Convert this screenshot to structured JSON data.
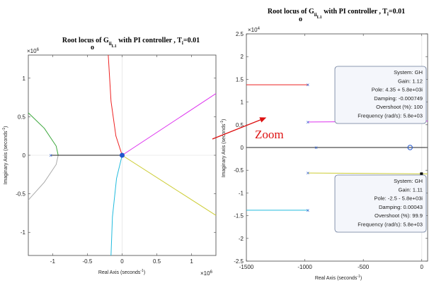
{
  "chart_data": [
    {
      "type": "line",
      "title": "Root locus of G",
      "title_sub": "i",
      "title_sub2": "o",
      "title_sub3": "i",
      "title_sub4": "L1",
      "title_tail": " with PI controller , T",
      "title_ti_sub": "i",
      "title_end": "=0.01",
      "xlabel": "Real Axis (seconds",
      "ylabel": "Imaginary Axis (seconds",
      "unit_exp": "-1",
      "x_multiplier": "×10",
      "y_multiplier": "×10",
      "multiplier_exp": "6",
      "xlim": [
        -1.35,
        1.35
      ],
      "ylim": [
        -1.3,
        1.3
      ],
      "x_ticks": [
        -1,
        -0.5,
        0,
        0.5,
        1
      ],
      "x_tick_labels": [
        "-1",
        "-0.5",
        "0",
        "0.5",
        "1"
      ],
      "y_ticks": [
        -1,
        -0.5,
        0,
        0.5,
        1
      ],
      "y_tick_labels": [
        "-1",
        "-0.5",
        "0",
        "0.5",
        "1"
      ],
      "series": [
        {
          "color": "#3aa63a",
          "points": [
            [
              -1.35,
              0.55
            ],
            [
              -1.12,
              0.35
            ],
            [
              -0.95,
              0.12
            ],
            [
              -0.92,
              0.0
            ]
          ]
        },
        {
          "color": "#aaaaaa",
          "points": [
            [
              -0.92,
              0.0
            ],
            [
              -0.95,
              -0.12
            ],
            [
              -1.12,
              -0.35
            ],
            [
              -1.35,
              -0.58
            ]
          ]
        },
        {
          "color": "#222222",
          "points": [
            [
              -1.02,
              0.0
            ],
            [
              0.0,
              0.0
            ]
          ]
        },
        {
          "color": "#ee2222",
          "points": [
            [
              -0.2,
              1.3
            ],
            [
              -0.16,
              0.7
            ],
            [
              -0.09,
              0.25
            ],
            [
              0.0,
              0.0
            ]
          ]
        },
        {
          "color": "#22bbdd",
          "points": [
            [
              0.0,
              0.0
            ],
            [
              -0.08,
              -0.3
            ],
            [
              -0.14,
              -0.8
            ],
            [
              -0.16,
              -1.3
            ]
          ]
        },
        {
          "color": "#dd33ee",
          "points": [
            [
              0.0,
              0.0
            ],
            [
              1.35,
              0.8
            ]
          ]
        },
        {
          "color": "#cccc33",
          "points": [
            [
              0.0,
              0.0
            ],
            [
              1.35,
              -0.78
            ]
          ]
        }
      ]
    },
    {
      "type": "line",
      "title": "Root locus of G",
      "title_sub": "i",
      "title_sub2": "o",
      "title_sub3": "i",
      "title_sub4": "L1",
      "title_tail": " with PI controller , T",
      "title_ti_sub": "i",
      "title_end": "=0.01",
      "xlabel": "Real Axis (seconds",
      "ylabel": "Imaginary Axis (seconds",
      "unit_exp": "-1",
      "y_multiplier": "×10",
      "multiplier_exp": "4",
      "xlim": [
        -1500,
        50
      ],
      "ylim": [
        -2.5,
        2.5
      ],
      "x_ticks": [
        -1500,
        -1000,
        -500,
        0
      ],
      "x_tick_labels": [
        "-1500",
        "-1000",
        "-500",
        "0"
      ],
      "y_ticks": [
        -2.5,
        -2,
        -1.5,
        -1,
        -0.5,
        0,
        0.5,
        1,
        1.5,
        2,
        2.5
      ],
      "y_tick_labels": [
        "-2.5",
        "-2",
        "-1.5",
        "-1",
        "-0.5",
        "0",
        "0.5",
        "1",
        "1.5",
        "2",
        "2.5"
      ],
      "series": [
        {
          "color": "#ee2222",
          "points": [
            [
              -1500,
              1.38
            ],
            [
              -970,
              1.38
            ]
          ]
        },
        {
          "color": "#22bbdd",
          "points": [
            [
              -1500,
              -1.38
            ],
            [
              -970,
              -1.38
            ]
          ]
        },
        {
          "color": "#dd33ee",
          "points": [
            [
              -970,
              0.56
            ],
            [
              50,
              0.58
            ]
          ]
        },
        {
          "color": "#cccc33",
          "points": [
            [
              -970,
              -0.56
            ],
            [
              50,
              -0.58
            ]
          ]
        },
        {
          "color": "#222222",
          "points": [
            [
              -1500,
              0.0
            ],
            [
              50,
              0.0
            ]
          ]
        }
      ],
      "pole_markers": [
        [
          -970,
          1.38
        ],
        [
          -970,
          -1.38
        ],
        [
          -970,
          0.56
        ],
        [
          -970,
          -0.56
        ],
        [
          -900,
          0.0
        ]
      ],
      "zero_markers": [
        [
          -100,
          0.0
        ]
      ],
      "datatips": [
        {
          "point": [
            4.35,
            0.58
          ],
          "lines": [
            "System: GH",
            "Gain: 1.12",
            "Pole: 4.35 + 5.8e+03i",
            "Damping: -0.000749",
            "Overshoot (%): 100",
            "Frequency (rad/s): 5.8e+03"
          ]
        },
        {
          "point": [
            -2.5,
            -0.58
          ],
          "lines": [
            "System: GH",
            "Gain: 1.11",
            "Pole: -2.5 - 5.8e+03i",
            "Damping: 0.00043",
            "Overshoot (%): 99.9",
            "Frequency (rad/s): 5.8e+03"
          ]
        }
      ]
    }
  ],
  "annotation": {
    "zoom_label": "Zoom",
    "color": "#dd1111"
  }
}
